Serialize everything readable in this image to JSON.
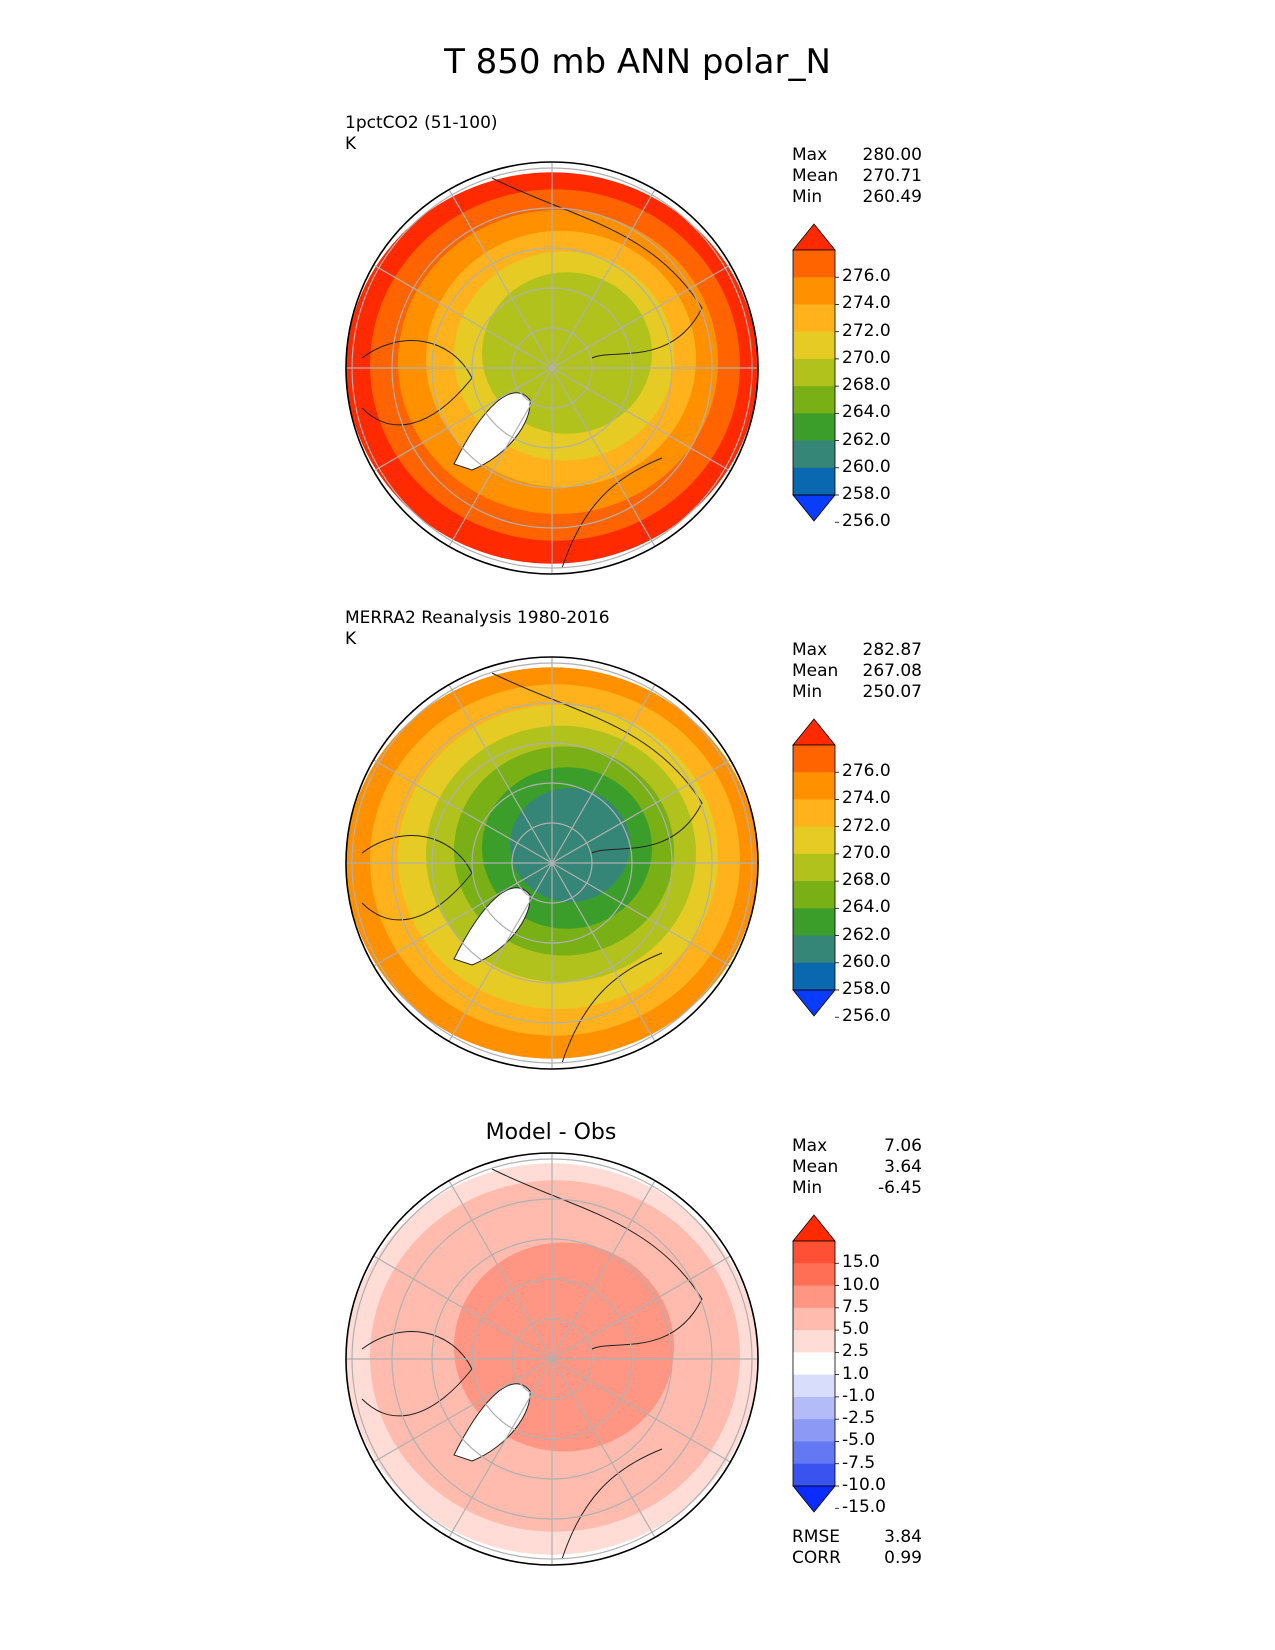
{
  "figure": {
    "title": "T 850 mb ANN polar_N"
  },
  "chart_data": [
    {
      "type": "heatmap",
      "projection": "north-polar-stereographic",
      "title": "1pctCO2 (51-100)",
      "units": "K",
      "stats": [
        {
          "label": "Max",
          "value": "280.00"
        },
        {
          "label": "Mean",
          "value": "270.71"
        },
        {
          "label": "Min",
          "value": "260.49"
        }
      ],
      "colorbar": {
        "extend": "both",
        "tick_labels": [
          "276.0",
          "274.0",
          "272.0",
          "270.0",
          "268.0",
          "264.0",
          "262.0",
          "260.0",
          "258.0",
          "256.0"
        ],
        "colors": [
          "#ff2a00",
          "#ff6400",
          "#ff9000",
          "#ffb21c",
          "#e5cb24",
          "#b1c21d",
          "#78b015",
          "#3c9e2a",
          "#358676",
          "#0a68b0",
          "#0a3cff"
        ]
      }
    },
    {
      "type": "heatmap",
      "projection": "north-polar-stereographic",
      "title": "MERRA2 Reanalysis 1980-2016",
      "units": "K",
      "stats": [
        {
          "label": "Max",
          "value": "282.87"
        },
        {
          "label": "Mean",
          "value": "267.08"
        },
        {
          "label": "Min",
          "value": "250.07"
        }
      ],
      "colorbar": {
        "extend": "both",
        "tick_labels": [
          "276.0",
          "274.0",
          "272.0",
          "270.0",
          "268.0",
          "264.0",
          "262.0",
          "260.0",
          "258.0",
          "256.0"
        ],
        "colors": [
          "#ff2a00",
          "#ff6400",
          "#ff9000",
          "#ffb21c",
          "#e5cb24",
          "#b1c21d",
          "#78b015",
          "#3c9e2a",
          "#358676",
          "#0a68b0",
          "#0a3cff"
        ]
      }
    },
    {
      "type": "heatmap",
      "projection": "north-polar-stereographic",
      "title": "Model - Obs",
      "stats": [
        {
          "label": "Max",
          "value": "7.06"
        },
        {
          "label": "Mean",
          "value": "3.64"
        },
        {
          "label": "Min",
          "value": "-6.45"
        }
      ],
      "metrics": [
        {
          "label": "RMSE",
          "value": "3.84"
        },
        {
          "label": "CORR",
          "value": "0.99"
        }
      ],
      "colorbar": {
        "extend": "both",
        "tick_labels": [
          "15.0",
          "10.0",
          "7.5",
          "5.0",
          "2.5",
          "1.0",
          "-1.0",
          "-2.5",
          "-5.0",
          "-7.5",
          "-10.0",
          "-15.0"
        ],
        "colors": [
          "#ff2a00",
          "#ff4f35",
          "#ff6f55",
          "#ff9683",
          "#ffbbae",
          "#ffdcd6",
          "#ffffff",
          "#d8ddfb",
          "#b3bcf8",
          "#8c9af6",
          "#6478f3",
          "#3a52f0",
          "#0a2cff"
        ]
      }
    }
  ]
}
